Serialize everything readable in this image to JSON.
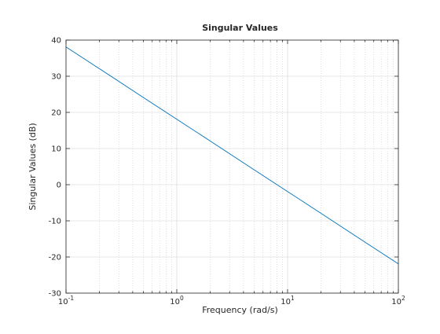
{
  "chart_data": {
    "type": "line",
    "title": "Singular Values",
    "xlabel": "Frequency (rad/s)",
    "ylabel": "Singular Values (dB)",
    "xscale": "log",
    "xlim": [
      0.1,
      100
    ],
    "ylim": [
      -30,
      40
    ],
    "x_ticks": [
      {
        "value": 0.1,
        "base": "10",
        "exp": "-1"
      },
      {
        "value": 1,
        "base": "10",
        "exp": "0"
      },
      {
        "value": 10,
        "base": "10",
        "exp": "1"
      },
      {
        "value": 100,
        "base": "10",
        "exp": "2"
      }
    ],
    "y_ticks": [
      40,
      30,
      20,
      10,
      0,
      -10,
      -20,
      -30
    ],
    "y_tick_labels": [
      "40",
      "30",
      "20",
      "10",
      "0",
      "-10",
      "-20",
      "-30"
    ],
    "grid": true,
    "series": [
      {
        "color": "#0072bd",
        "x": [
          0.1,
          0.2,
          0.5,
          1,
          2,
          5,
          10,
          20,
          50,
          100
        ],
        "y": [
          38.1,
          32.1,
          24.1,
          18.1,
          12.1,
          4.1,
          -1.9,
          -7.9,
          -15.9,
          -21.9
        ]
      }
    ]
  }
}
